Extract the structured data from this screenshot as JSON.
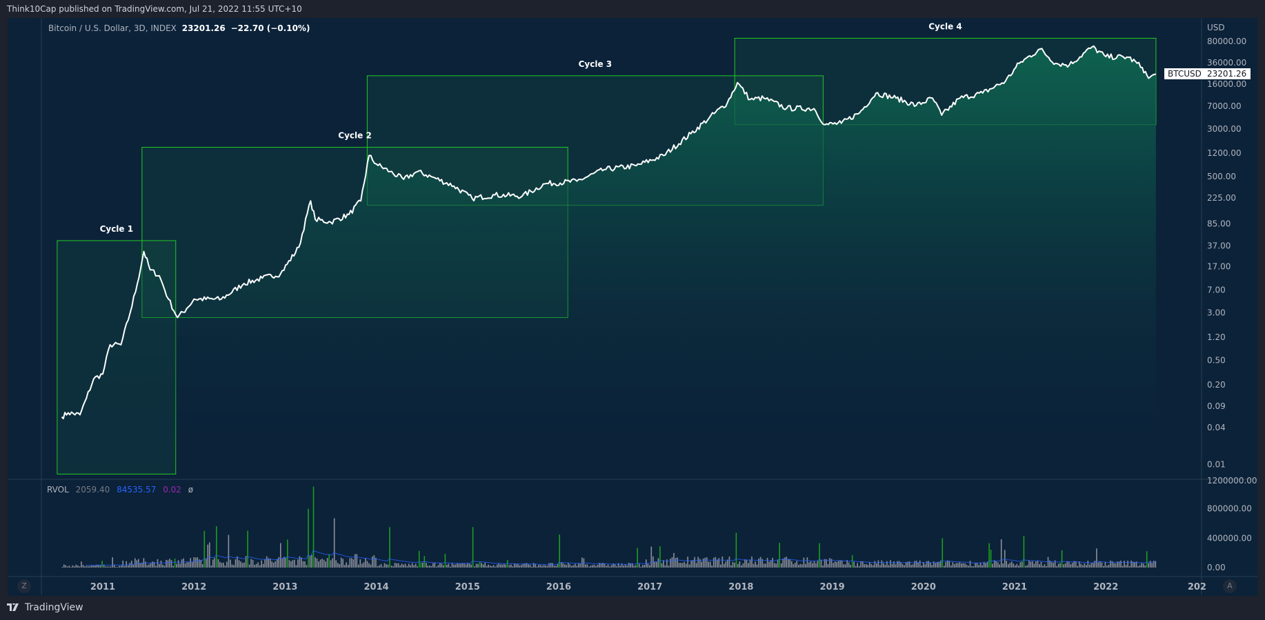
{
  "header": {
    "published": "Think10Cap published on TradingView.com, Jul 21, 2022 11:55 UTC+10"
  },
  "legend": {
    "symbol": "Bitcoin / U.S. Dollar, 3D, INDEX",
    "last": "23201.26",
    "change": "−22.70 (−0.10%)"
  },
  "price_tag": {
    "ticker": "BTCUSD",
    "value": "23201.26"
  },
  "rvol": {
    "label": "RVOL",
    "v1": "2059.40",
    "v2": "84535.57",
    "v3": "0.02",
    "v4": "ø",
    "colors": {
      "v1": "#787b86",
      "v2": "#2962ff",
      "v3": "#9c27b0"
    }
  },
  "buttons": {
    "left": "Z",
    "right": "A"
  },
  "footer": {
    "brand": "TradingView"
  },
  "chart_data": [
    {
      "type": "area",
      "scale": "log",
      "currency_label": "USD",
      "y_ticks": [
        "80000.00",
        "36000.00",
        "16000.00",
        "7000.00",
        "3000.00",
        "1200.00",
        "500.00",
        "225.00",
        "85.00",
        "37.00",
        "17.00",
        "7.00",
        "3.00",
        "1.20",
        "0.50",
        "0.20",
        "0.09",
        "0.04",
        "0.01"
      ],
      "x_ticks": [
        "2011",
        "2012",
        "2013",
        "2014",
        "2015",
        "2016",
        "2017",
        "2018",
        "2019",
        "2020",
        "2021",
        "2022",
        "202"
      ],
      "colors": {
        "line": "#ffffff",
        "fill_top": "#0e6650",
        "box_border": "#22cc22"
      },
      "series": [
        {
          "x": 2010.55,
          "y": 0.06
        },
        {
          "x": 2010.62,
          "y": 0.07
        },
        {
          "x": 2010.75,
          "y": 0.065
        },
        {
          "x": 2010.82,
          "y": 0.12
        },
        {
          "x": 2010.9,
          "y": 0.25
        },
        {
          "x": 2011.0,
          "y": 0.3
        },
        {
          "x": 2011.08,
          "y": 0.9
        },
        {
          "x": 2011.2,
          "y": 0.9
        },
        {
          "x": 2011.3,
          "y": 3
        },
        {
          "x": 2011.38,
          "y": 9
        },
        {
          "x": 2011.45,
          "y": 30
        },
        {
          "x": 2011.52,
          "y": 15
        },
        {
          "x": 2011.62,
          "y": 12
        },
        {
          "x": 2011.72,
          "y": 5
        },
        {
          "x": 2011.82,
          "y": 2.5
        },
        {
          "x": 2011.92,
          "y": 3.5
        },
        {
          "x": 2012.0,
          "y": 5
        },
        {
          "x": 2012.3,
          "y": 5
        },
        {
          "x": 2012.55,
          "y": 9
        },
        {
          "x": 2012.75,
          "y": 11
        },
        {
          "x": 2012.95,
          "y": 13
        },
        {
          "x": 2013.15,
          "y": 35
        },
        {
          "x": 2013.28,
          "y": 200
        },
        {
          "x": 2013.33,
          "y": 100
        },
        {
          "x": 2013.5,
          "y": 90
        },
        {
          "x": 2013.7,
          "y": 120
        },
        {
          "x": 2013.83,
          "y": 200
        },
        {
          "x": 2013.92,
          "y": 1100
        },
        {
          "x": 2014.0,
          "y": 800
        },
        {
          "x": 2014.15,
          "y": 600
        },
        {
          "x": 2014.3,
          "y": 450
        },
        {
          "x": 2014.45,
          "y": 600
        },
        {
          "x": 2014.6,
          "y": 500
        },
        {
          "x": 2014.85,
          "y": 350
        },
        {
          "x": 2015.05,
          "y": 220
        },
        {
          "x": 2015.3,
          "y": 250
        },
        {
          "x": 2015.6,
          "y": 240
        },
        {
          "x": 2015.85,
          "y": 380
        },
        {
          "x": 2016.2,
          "y": 420
        },
        {
          "x": 2016.5,
          "y": 650
        },
        {
          "x": 2016.85,
          "y": 750
        },
        {
          "x": 2017.15,
          "y": 1100
        },
        {
          "x": 2017.45,
          "y": 2500
        },
        {
          "x": 2017.65,
          "y": 4500
        },
        {
          "x": 2017.85,
          "y": 8000
        },
        {
          "x": 2017.96,
          "y": 17000
        },
        {
          "x": 2018.1,
          "y": 9000
        },
        {
          "x": 2018.25,
          "y": 9500
        },
        {
          "x": 2018.5,
          "y": 6500
        },
        {
          "x": 2018.8,
          "y": 6400
        },
        {
          "x": 2018.92,
          "y": 3500
        },
        {
          "x": 2019.1,
          "y": 3700
        },
        {
          "x": 2019.3,
          "y": 5500
        },
        {
          "x": 2019.48,
          "y": 11500
        },
        {
          "x": 2019.7,
          "y": 9500
        },
        {
          "x": 2019.92,
          "y": 7200
        },
        {
          "x": 2020.1,
          "y": 9500
        },
        {
          "x": 2020.2,
          "y": 5000
        },
        {
          "x": 2020.4,
          "y": 9500
        },
        {
          "x": 2020.65,
          "y": 11500
        },
        {
          "x": 2020.9,
          "y": 18000
        },
        {
          "x": 2021.05,
          "y": 35000
        },
        {
          "x": 2021.28,
          "y": 60000
        },
        {
          "x": 2021.45,
          "y": 35000
        },
        {
          "x": 2021.6,
          "y": 33000
        },
        {
          "x": 2021.85,
          "y": 65000
        },
        {
          "x": 2022.0,
          "y": 45000
        },
        {
          "x": 2022.25,
          "y": 44000
        },
        {
          "x": 2022.4,
          "y": 30000
        },
        {
          "x": 2022.47,
          "y": 20000
        },
        {
          "x": 2022.55,
          "y": 23201.26
        }
      ],
      "annotations": [
        {
          "label": "Cycle 1",
          "x_range": [
            2010.5,
            2011.8
          ],
          "y_range": [
            0.007,
            45
          ]
        },
        {
          "label": "Cycle 2",
          "x_range": [
            2011.43,
            2016.1
          ],
          "y_range": [
            2.5,
            1500
          ]
        },
        {
          "label": "Cycle 3",
          "x_range": [
            2013.9,
            2018.9
          ],
          "y_range": [
            170,
            22000
          ]
        },
        {
          "label": "Cycle 4",
          "x_range": [
            2017.93,
            2022.55
          ],
          "y_range": [
            3500,
            90000
          ]
        }
      ]
    },
    {
      "type": "bar",
      "title": "RVOL",
      "y_ticks": [
        "1200000.00",
        "800000.00",
        "400000.00",
        "0.00"
      ],
      "ylim": [
        0,
        1200000
      ],
      "spikes": [
        {
          "x": 2013.3,
          "y": 1100000
        },
        {
          "x": 2013.25,
          "y": 800000
        },
        {
          "x": 2012.1,
          "y": 500000
        },
        {
          "x": 2014.15,
          "y": 550000
        },
        {
          "x": 2015.05,
          "y": 550000
        },
        {
          "x": 2016.0,
          "y": 450000
        },
        {
          "x": 2020.2,
          "y": 400000
        },
        {
          "x": 2021.1,
          "y": 430000
        }
      ]
    }
  ]
}
